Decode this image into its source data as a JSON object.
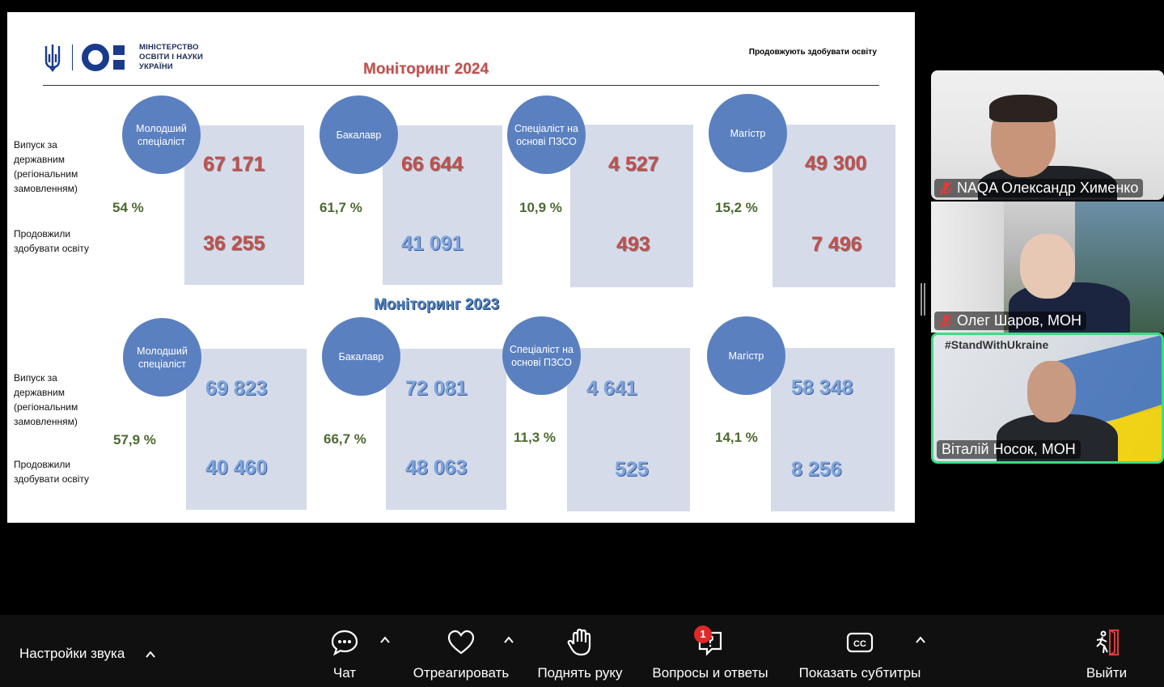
{
  "slide": {
    "logo_text": [
      "МІНІСТЕРСТВО",
      "ОСВІТИ І НАУКИ",
      "УКРАЇНИ"
    ],
    "top_note": "Продовжують здобувати освіту",
    "monitoring_2024_title": "Моніторинг 2024",
    "monitoring_2023_title": "Моніторинг 2023",
    "row_labels": {
      "issue": "Випуск за державним (регіональним замовленням)",
      "continued": "Продовжили здобувати освіту"
    },
    "y2024": [
      {
        "level": "Молодший спеціаліст",
        "issued": "67 171",
        "continued": "36 255",
        "percent": "54 %"
      },
      {
        "level": "Бакалавр",
        "issued": "66 644",
        "continued": "41 091",
        "percent": "61,7 %"
      },
      {
        "level": "Спеціаліст на основі ПЗСО",
        "issued": "4 527",
        "continued": "493",
        "percent": "10,9 %"
      },
      {
        "level": "Магістр",
        "issued": "49 300",
        "continued": "7 496",
        "percent": "15,2 %"
      }
    ],
    "y2023": [
      {
        "level": "Молодший спеціаліст",
        "issued": "69 823",
        "continued": "40 460",
        "percent": "57,9 %"
      },
      {
        "level": "Бакалавр",
        "issued": "72 081",
        "continued": "48 063",
        "percent": "66,7 %"
      },
      {
        "level": "Спеціаліст на основі ПЗСО",
        "issued": "4 641",
        "continued": "525",
        "percent": "11,3 %"
      },
      {
        "level": "Магістр",
        "issued": "58 348",
        "continued": "8 256",
        "percent": "14,1 %"
      }
    ]
  },
  "participants": [
    {
      "name": "NAQA Олександр Хименко",
      "muted": true
    },
    {
      "name": "Олег Шаров, МОН",
      "muted": true
    },
    {
      "name": "Віталій Носок, МОН",
      "muted": false,
      "overlay_text": "#StandWithUkraine"
    }
  ],
  "toolbar": {
    "audio_settings": "Настройки звука",
    "chat": "Чат",
    "react": "Отреагировать",
    "raise_hand": "Поднять руку",
    "qa": "Вопросы и ответы",
    "qa_badge": "1",
    "captions": "Показать субтитры",
    "leave": "Выйти"
  },
  "colors": {
    "active_speaker": "#3ddc84",
    "leave_icon": "#e03a3a",
    "circle": "#5b80c0",
    "card": "#d6dbea"
  }
}
